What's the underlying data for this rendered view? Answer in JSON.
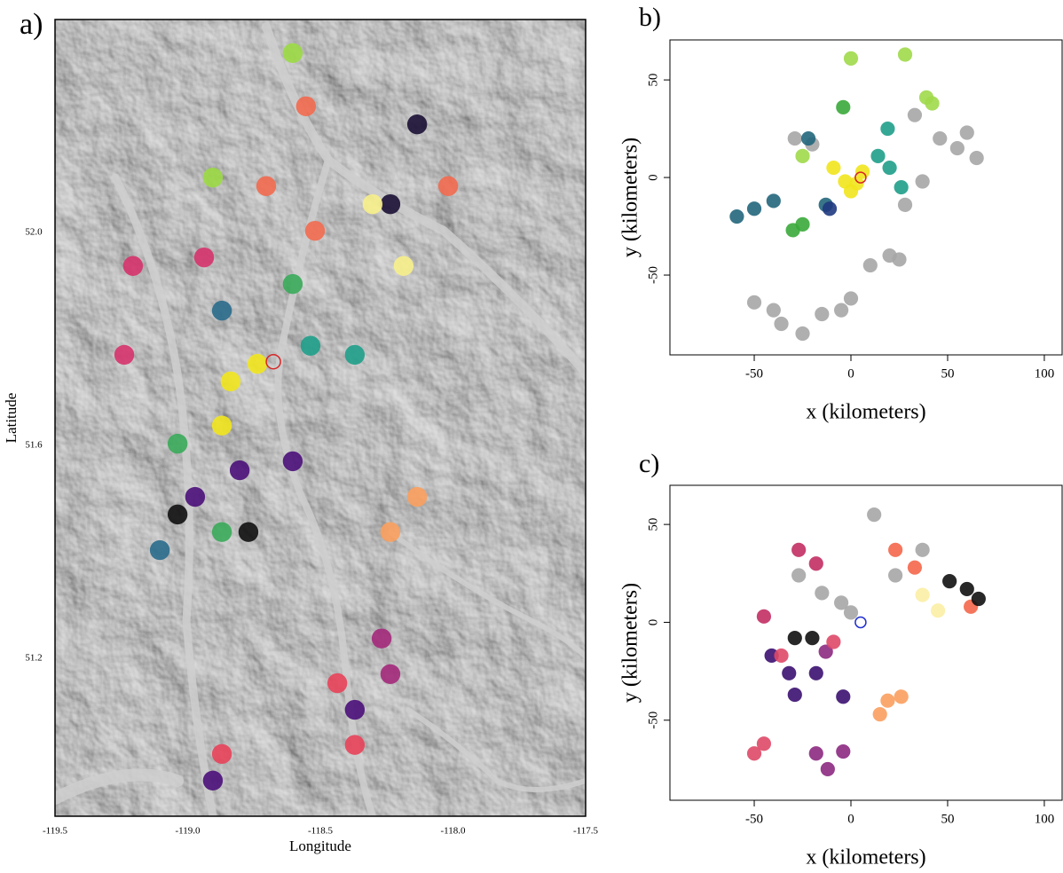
{
  "chart_data": [
    {
      "type": "map-scatter",
      "panel_label": "a)",
      "xlabel": "Longitude",
      "ylabel": "Latitude",
      "xlim": [
        -119.5,
        -117.5
      ],
      "ylim": [
        50.903,
        52.4
      ],
      "xticks": [
        -119.5,
        {
          "value": -119,
          "label": "-119.0"
        },
        -118.5,
        {
          "value": -118,
          "label": "-118.0"
        },
        -117.5
      ],
      "yticks": [
        {
          "value": 51.2,
          "label": "51.2"
        },
        {
          "value": 51.6,
          "label": "51.6"
        },
        {
          "value": 52,
          "label": "52.0"
        }
      ],
      "marker": {
        "x": -118.677,
        "y": 51.757,
        "color": "#d62728"
      },
      "series": [
        {
          "color": "#d6336b",
          "x": [
            -119.206,
            -119.239,
            -118.938
          ],
          "y": [
            51.937,
            51.77,
            51.953
          ]
        },
        {
          "color": "#f26a4f",
          "x": [
            -118.554,
            -118.704,
            -118.018,
            -118.52
          ],
          "y": [
            52.237,
            52.087,
            52.087,
            52.003
          ]
        },
        {
          "color": "#1b1034",
          "x": [
            -118.135,
            -118.236
          ],
          "y": [
            52.203,
            52.053
          ]
        },
        {
          "color": "#f7f08a",
          "x": [
            -118.303,
            -118.186
          ],
          "y": [
            52.053,
            51.937
          ]
        },
        {
          "color": "#3aaa5a",
          "x": [
            -118.604,
            -119.038,
            -118.871
          ],
          "y": [
            51.903,
            51.603,
            51.437
          ]
        },
        {
          "color": "#1f9e89",
          "x": [
            -118.537,
            -118.37
          ],
          "y": [
            51.787,
            51.77
          ]
        },
        {
          "color": "#2a6b8c",
          "x": [
            -118.871,
            -119.105
          ],
          "y": [
            51.853,
            51.403
          ]
        },
        {
          "color": "#f1e51d",
          "x": [
            -118.838,
            -118.737,
            -118.871
          ],
          "y": [
            51.72,
            51.753,
            51.637
          ]
        },
        {
          "color": "#4a1079",
          "x": [
            -118.804,
            -118.972,
            -118.604,
            -118.37,
            -118.905
          ],
          "y": [
            51.553,
            51.503,
            51.57,
            51.103,
            50.97
          ]
        },
        {
          "color": "#111111",
          "x": [
            -119.038,
            -118.771
          ],
          "y": [
            51.47,
            51.437
          ]
        },
        {
          "color": "#fba05e",
          "x": [
            -118.236,
            -118.135
          ],
          "y": [
            51.437,
            51.503
          ]
        },
        {
          "color": "#a3297b",
          "x": [
            -118.269,
            -118.236
          ],
          "y": [
            51.237,
            51.17
          ]
        },
        {
          "color": "#e8435a",
          "x": [
            -118.436,
            -118.37,
            -118.871
          ],
          "y": [
            51.153,
            51.037,
            51.02
          ]
        },
        {
          "color": "#9bd944",
          "x": [
            -118.604,
            -118.905
          ],
          "y": [
            52.337,
            52.103
          ]
        }
      ]
    },
    {
      "type": "scatter",
      "panel_label": "b)",
      "xlabel": "x (kilometers)",
      "ylabel": "y (kilometers)",
      "xlim": [
        -93.6,
        109.2
      ],
      "ylim": [
        -90.9,
        70.5
      ],
      "xticks": [
        -50,
        0,
        50,
        100
      ],
      "yticks": [
        -50,
        0,
        50
      ],
      "marker": {
        "x": 5,
        "y": 0,
        "color": "#d62728"
      },
      "series": [
        {
          "color": "#a6a6a6",
          "x": [
            -29,
            -20,
            46,
            55,
            65,
            60,
            -50,
            -40,
            -36,
            -25,
            -15,
            -5,
            0,
            10,
            20,
            25,
            37,
            28,
            33
          ],
          "y": [
            20,
            17,
            20,
            15,
            10,
            23,
            -64,
            -68,
            -75,
            -80,
            -70,
            -68,
            -62,
            -45,
            -40,
            -42,
            -2,
            -14,
            32
          ]
        },
        {
          "color": "#22667c",
          "x": [
            -59,
            -50,
            -40,
            -22,
            -13
          ],
          "y": [
            -20,
            -16,
            -12,
            20,
            -14
          ]
        },
        {
          "color": "#1f9e89",
          "x": [
            14,
            20,
            26,
            19
          ],
          "y": [
            11,
            5,
            -5,
            25
          ]
        },
        {
          "color": "#3aaa3a",
          "x": [
            -30,
            -25,
            -4
          ],
          "y": [
            -27,
            -24,
            36
          ]
        },
        {
          "color": "#a0d94a",
          "x": [
            39,
            42,
            0,
            28,
            -25
          ],
          "y": [
            41,
            38,
            61,
            63,
            11
          ]
        },
        {
          "color": "#f1e51d",
          "x": [
            -9,
            -3,
            3,
            6,
            0
          ],
          "y": [
            5,
            -2,
            -3,
            3,
            -7
          ]
        },
        {
          "color": "#1f3a80",
          "x": [
            -11
          ],
          "y": [
            -16
          ]
        }
      ]
    },
    {
      "type": "scatter",
      "panel_label": "c)",
      "xlabel": "x (kilometers)",
      "ylabel": "y (kilometers)",
      "xlim": [
        -93.6,
        109.2
      ],
      "ylim": [
        -90.9,
        70
      ],
      "xticks": [
        -50,
        0,
        50,
        100
      ],
      "yticks": [
        -50,
        0,
        50
      ],
      "marker": {
        "x": 5,
        "y": 0,
        "color": "#2030d0"
      },
      "series": [
        {
          "color": "#a6a6a6",
          "x": [
            -27,
            -15,
            -5,
            0,
            23,
            37,
            12
          ],
          "y": [
            24,
            15,
            10,
            5,
            24,
            37,
            55
          ]
        },
        {
          "color": "#c22d63",
          "x": [
            -27,
            -18,
            -45
          ],
          "y": [
            37,
            30,
            3
          ]
        },
        {
          "color": "#f4674a",
          "x": [
            23,
            33,
            62
          ],
          "y": [
            37,
            28,
            8
          ]
        },
        {
          "color": "#fb9e5f",
          "x": [
            19,
            26,
            15
          ],
          "y": [
            -40,
            -38,
            -47
          ]
        },
        {
          "color": "#fbeea4",
          "x": [
            37,
            45
          ],
          "y": [
            14,
            6
          ]
        },
        {
          "color": "#111111",
          "x": [
            51,
            60,
            66,
            -20,
            -29
          ],
          "y": [
            21,
            17,
            12,
            -8,
            -8
          ]
        },
        {
          "color": "#3b0f70",
          "x": [
            -41,
            -32,
            -29,
            -18,
            -4
          ],
          "y": [
            -17,
            -26,
            -37,
            -26,
            -38
          ]
        },
        {
          "color": "#8c2981",
          "x": [
            -18,
            -12,
            -4,
            -13
          ],
          "y": [
            -67,
            -75,
            -66,
            -15
          ]
        },
        {
          "color": "#de4968",
          "x": [
            -36,
            -9,
            -50,
            -45
          ],
          "y": [
            -17,
            -10,
            -67,
            -62
          ]
        }
      ]
    }
  ]
}
